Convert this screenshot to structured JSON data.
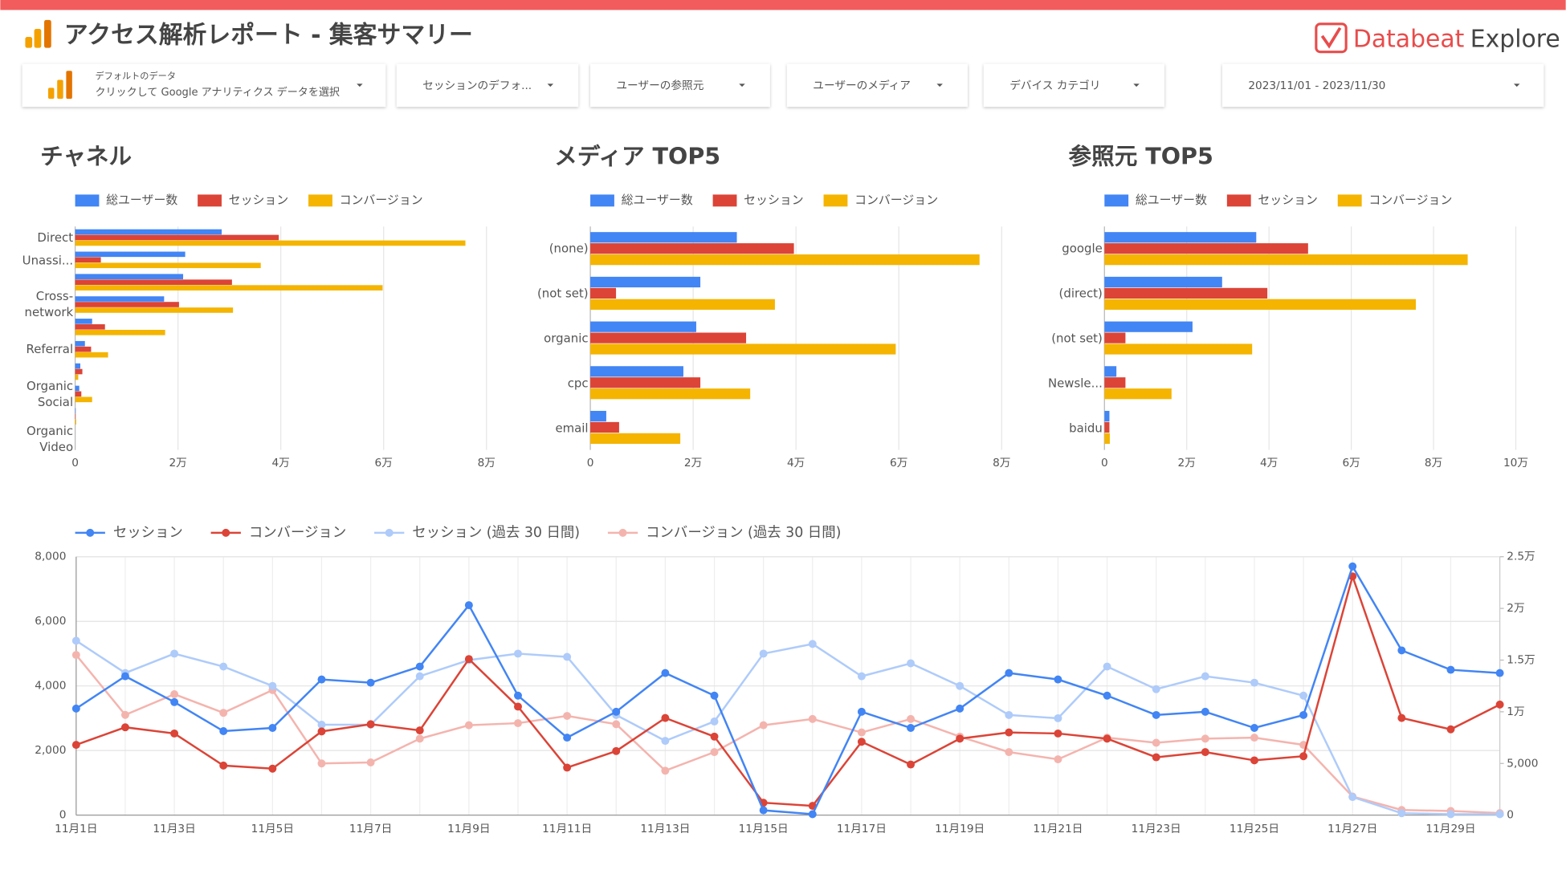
{
  "header": {
    "title": "アクセス解析レポート - 集客サマリー",
    "brand_name": "Databeat",
    "brand_product": "Explore"
  },
  "filters": {
    "data_source_caption": "デフォルトのデータ",
    "data_source_text": "クリックして Google アナリティクス データを選択",
    "controls": [
      "セッションのデフォ...",
      "ユーザーの参照元",
      "ユーザーのメディア",
      "デバイス カテゴリ"
    ],
    "date_range": "2023/11/01 - 2023/11/30"
  },
  "chart_data": [
    {
      "type": "hbar",
      "title": "チャネル",
      "categories": [
        "Direct",
        "Unassi...",
        null,
        "Cross-network",
        null,
        "Referral",
        null,
        "Organic Social",
        null,
        "Organic Video"
      ],
      "series": [
        {
          "name": "総ユーザー数",
          "color": "#4285f4",
          "values": [
            28500,
            21400,
            21000,
            17300,
            3300,
            1900,
            1000,
            800,
            100,
            0
          ]
        },
        {
          "name": "セッション",
          "color": "#db4437",
          "values": [
            39600,
            5000,
            30500,
            20200,
            5800,
            3100,
            1400,
            1200,
            100,
            0
          ]
        },
        {
          "name": "コンバージョン",
          "color": "#f4b400",
          "values": [
            75900,
            36100,
            59800,
            30700,
            17500,
            6400,
            600,
            3300,
            200,
            0
          ]
        }
      ],
      "xlim": [
        0,
        80000
      ],
      "xticks": [
        0,
        {
          "value": 20000,
          "label": "2万"
        },
        {
          "value": 40000,
          "label": "4万"
        },
        {
          "value": 60000,
          "label": "6万"
        },
        {
          "value": 80000,
          "label": "8万"
        }
      ],
      "grid": true,
      "legend": "top"
    },
    {
      "type": "hbar",
      "title": "メディア TOP5",
      "categories": [
        "(none)",
        "(not set)",
        "organic",
        "cpc",
        "email"
      ],
      "series": [
        {
          "name": "総ユーザー数",
          "color": "#4285f4",
          "values": [
            28500,
            21400,
            20600,
            18100,
            3100
          ]
        },
        {
          "name": "セッション",
          "color": "#db4437",
          "values": [
            39600,
            5000,
            30300,
            21400,
            5600
          ]
        },
        {
          "name": "コンバージョン",
          "color": "#f4b400",
          "values": [
            75700,
            35900,
            59400,
            31100,
            17500
          ]
        }
      ],
      "xlim": [
        0,
        80000
      ],
      "xticks": [
        0,
        {
          "value": 20000,
          "label": "2万"
        },
        {
          "value": 40000,
          "label": "4万"
        },
        {
          "value": 60000,
          "label": "6万"
        },
        {
          "value": 80000,
          "label": "8万"
        }
      ],
      "grid": true,
      "legend": "top"
    },
    {
      "type": "hbar",
      "title": "参照元 TOP5",
      "categories": [
        "google",
        "(direct)",
        "(not set)",
        "Newsle...",
        "baidu"
      ],
      "series": [
        {
          "name": "総ユーザー数",
          "color": "#4285f4",
          "values": [
            36900,
            28600,
            21400,
            2900,
            1200
          ]
        },
        {
          "name": "セッション",
          "color": "#db4437",
          "values": [
            49500,
            39600,
            5100,
            5100,
            1200
          ]
        },
        {
          "name": "コンバージョン",
          "color": "#f4b400",
          "values": [
            88300,
            75700,
            35900,
            16300,
            1300
          ]
        }
      ],
      "xlim": [
        0,
        100000
      ],
      "xticks": [
        0,
        {
          "value": 20000,
          "label": "2万"
        },
        {
          "value": 40000,
          "label": "4万"
        },
        {
          "value": 60000,
          "label": "6万"
        },
        {
          "value": 80000,
          "label": "8万"
        },
        {
          "value": 100000,
          "label": "10万"
        }
      ],
      "grid": true,
      "legend": "top"
    },
    {
      "type": "line",
      "categories": [
        "11月1日",
        null,
        "11月3日",
        null,
        "11月5日",
        null,
        "11月7日",
        null,
        "11月9日",
        null,
        "11月11日",
        null,
        "11月13日",
        null,
        "11月15日",
        null,
        "11月17日",
        null,
        "11月19日",
        null,
        "11月21日",
        null,
        "11月23日",
        null,
        "11月25日",
        null,
        "11月27日",
        null,
        "11月29日",
        null
      ],
      "series": [
        {
          "name": "セッション",
          "color": "#4285f4",
          "axis": "y",
          "values": [
            3300,
            4300,
            3500,
            2600,
            2700,
            4200,
            4100,
            4600,
            6500,
            3700,
            2400,
            3200,
            4400,
            3700,
            150,
            30,
            3200,
            2700,
            3300,
            4400,
            4200,
            3700,
            3100,
            3200,
            2700,
            3100,
            7700,
            5100,
            4500,
            4400
          ]
        },
        {
          "name": "コンバージョン",
          "color": "#db4437",
          "axis": "y2",
          "values": [
            6800,
            8500,
            7900,
            4800,
            4500,
            8100,
            8800,
            8200,
            15100,
            10500,
            4600,
            6200,
            9400,
            7600,
            1200,
            900,
            7100,
            4900,
            7400,
            8000,
            7900,
            7400,
            5600,
            6100,
            5300,
            5700,
            23100,
            9400,
            8300,
            10700
          ]
        },
        {
          "name": "セッション (過去 30 日間)",
          "color": "#aecbfa",
          "axis": "y",
          "values": [
            5400,
            4400,
            5000,
            4600,
            4000,
            2800,
            2800,
            4300,
            4800,
            5000,
            4900,
            3100,
            2300,
            2900,
            5000,
            5300,
            4300,
            4700,
            4000,
            3100,
            3000,
            4600,
            3900,
            4300,
            4100,
            3700,
            560,
            60,
            30,
            30
          ]
        },
        {
          "name": "コンバージョン (過去 30 日間)",
          "color": "#f4b4ae",
          "axis": "y2",
          "values": [
            15500,
            9700,
            11700,
            9900,
            12100,
            5000,
            5100,
            7400,
            8700,
            8900,
            9600,
            8800,
            4300,
            6100,
            8700,
            9300,
            8000,
            9300,
            7600,
            6100,
            5400,
            7500,
            7000,
            7400,
            7500,
            6800,
            1800,
            500,
            400,
            200
          ]
        }
      ],
      "ylim": [
        0,
        8000
      ],
      "yticks": [
        0,
        {
          "value": 2000,
          "label": "2,000"
        },
        {
          "value": 4000,
          "label": "4,000"
        },
        {
          "value": 6000,
          "label": "6,000"
        },
        {
          "value": 8000,
          "label": "8,000"
        }
      ],
      "y2lim": [
        0,
        25000
      ],
      "y2ticks": [
        0,
        {
          "value": 5000,
          "label": "5,000"
        },
        {
          "value": 10000,
          "label": "1万"
        },
        {
          "value": 15000,
          "label": "1.5万"
        },
        {
          "value": 20000,
          "label": "2万"
        },
        {
          "value": 25000,
          "label": "2.5万"
        }
      ],
      "grid": true,
      "legend": "top"
    }
  ]
}
